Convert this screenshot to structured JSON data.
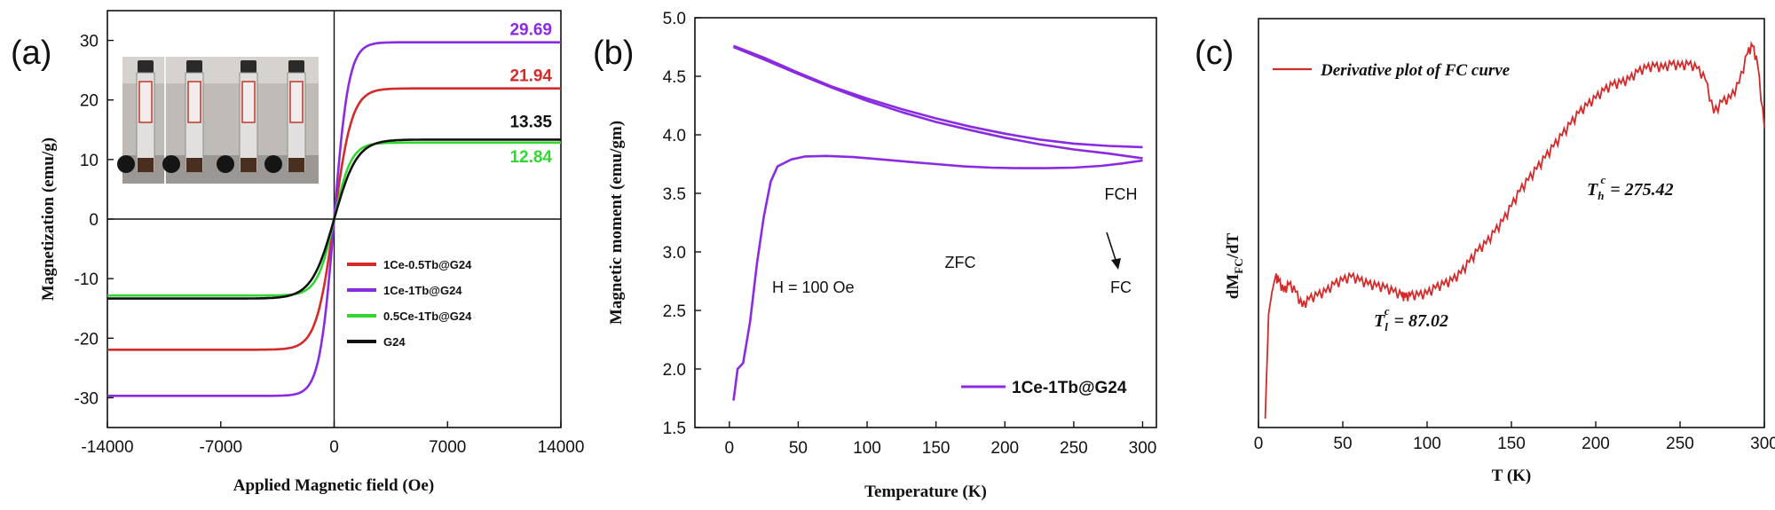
{
  "chart_data": [
    {
      "type": "line",
      "panel_label": "(a)",
      "xlabel": "Applied Magnetic field (Oe)",
      "ylabel": "Magnetization (emu/g)",
      "xlim": [
        -14000,
        14000
      ],
      "ylim": [
        -35,
        35
      ],
      "xticks": [
        "-14000",
        "-7000",
        "0",
        "7000",
        "14000"
      ],
      "yticks": [
        "-30",
        "-20",
        "-10",
        "0",
        "10",
        "20",
        "30"
      ],
      "legend_position": "lower-right",
      "series": [
        {
          "name": "1Ce-0.5Tb@G24",
          "color": "#d42a2a",
          "ms": 21.94,
          "label": "21.94",
          "k": 1100
        },
        {
          "name": "1Ce-1Tb@G24",
          "color": "#8a2be2",
          "ms": 29.69,
          "label": "29.69",
          "k": 900
        },
        {
          "name": "0.5Ce-1Tb@G24",
          "color": "#33d633",
          "ms": 12.84,
          "label": "12.84",
          "k": 1050
        },
        {
          "name": "G24",
          "color": "#111111",
          "ms": 13.35,
          "label": "13.35",
          "k": 1400
        }
      ],
      "inset": "photo of four sample vials with magnet"
    },
    {
      "type": "line",
      "panel_label": "(b)",
      "xlabel": "Temperature (K)",
      "ylabel": "Magnetic moment (emu/gm)",
      "xlim": [
        -25,
        310
      ],
      "ylim": [
        1.5,
        5.0
      ],
      "xticks": [
        "0",
        "50",
        "100",
        "150",
        "200",
        "250",
        "300"
      ],
      "yticks": [
        "1.5",
        "2.0",
        "2.5",
        "3.0",
        "3.5",
        "4.0",
        "4.5",
        "5.0"
      ],
      "legend": {
        "name": "1Ce-1Tb@G24",
        "color": "#8a2be2",
        "position": "lower-right"
      },
      "annotations": {
        "fch": "FCH",
        "zfc": "ZFC",
        "fc": "FC",
        "field": "H = 100 Oe"
      },
      "curves": {
        "zfc": [
          [
            3,
            1.73
          ],
          [
            6,
            2.0
          ],
          [
            10,
            2.05
          ],
          [
            15,
            2.4
          ],
          [
            20,
            2.9
          ],
          [
            25,
            3.3
          ],
          [
            30,
            3.6
          ],
          [
            35,
            3.73
          ],
          [
            45,
            3.79
          ],
          [
            55,
            3.815
          ],
          [
            70,
            3.82
          ],
          [
            90,
            3.81
          ],
          [
            110,
            3.79
          ],
          [
            130,
            3.77
          ],
          [
            150,
            3.75
          ],
          [
            170,
            3.73
          ],
          [
            190,
            3.72
          ],
          [
            210,
            3.715
          ],
          [
            230,
            3.715
          ],
          [
            250,
            3.72
          ],
          [
            270,
            3.735
          ],
          [
            285,
            3.755
          ],
          [
            300,
            3.78
          ]
        ],
        "fch": [
          [
            3,
            4.76
          ],
          [
            25,
            4.66
          ],
          [
            50,
            4.53
          ],
          [
            75,
            4.41
          ],
          [
            100,
            4.31
          ],
          [
            125,
            4.22
          ],
          [
            150,
            4.14
          ],
          [
            175,
            4.07
          ],
          [
            200,
            4.01
          ],
          [
            225,
            3.96
          ],
          [
            250,
            3.925
          ],
          [
            275,
            3.905
          ],
          [
            300,
            3.895
          ]
        ],
        "fc": [
          [
            300,
            3.8
          ],
          [
            275,
            3.84
          ],
          [
            250,
            3.875
          ],
          [
            225,
            3.92
          ],
          [
            200,
            3.975
          ],
          [
            175,
            4.04
          ],
          [
            150,
            4.11
          ],
          [
            125,
            4.195
          ],
          [
            100,
            4.29
          ],
          [
            75,
            4.4
          ],
          [
            50,
            4.52
          ],
          [
            25,
            4.645
          ],
          [
            3,
            4.75
          ]
        ]
      }
    },
    {
      "type": "line",
      "panel_label": "(c)",
      "xlabel": "T (K)",
      "ylabel": "dM<sub>FC</sub>/dT",
      "ylabel_main": "dM",
      "ylabel_sub": "FC",
      "ylabel_tail": "/dT",
      "xlim": [
        0,
        300
      ],
      "xticks": [
        "0",
        "50",
        "100",
        "150",
        "200",
        "250",
        "300"
      ],
      "legend": {
        "name": "Derivative plot of FC curve",
        "color": "#d42a2a",
        "position": "top-left"
      },
      "annotations": {
        "tl": {
          "main": "T",
          "sub": "l",
          "sup": "c",
          "value": " = 87.02"
        },
        "th": {
          "main": "T",
          "sub": "h",
          "sup": "c",
          "value": " = 275.42"
        }
      },
      "points": [
        [
          4,
          0.0
        ],
        [
          6,
          0.28
        ],
        [
          8,
          0.34
        ],
        [
          10,
          0.38
        ],
        [
          12,
          0.37
        ],
        [
          15,
          0.34
        ],
        [
          18,
          0.36
        ],
        [
          22,
          0.34
        ],
        [
          26,
          0.3
        ],
        [
          30,
          0.32
        ],
        [
          35,
          0.33
        ],
        [
          40,
          0.34
        ],
        [
          45,
          0.36
        ],
        [
          50,
          0.37
        ],
        [
          55,
          0.38
        ],
        [
          60,
          0.37
        ],
        [
          65,
          0.36
        ],
        [
          70,
          0.355
        ],
        [
          75,
          0.35
        ],
        [
          80,
          0.34
        ],
        [
          85,
          0.33
        ],
        [
          87,
          0.325
        ],
        [
          90,
          0.33
        ],
        [
          95,
          0.33
        ],
        [
          100,
          0.335
        ],
        [
          105,
          0.35
        ],
        [
          110,
          0.36
        ],
        [
          115,
          0.37
        ],
        [
          120,
          0.39
        ],
        [
          125,
          0.42
        ],
        [
          130,
          0.45
        ],
        [
          135,
          0.47
        ],
        [
          140,
          0.5
        ],
        [
          145,
          0.53
        ],
        [
          150,
          0.57
        ],
        [
          155,
          0.61
        ],
        [
          160,
          0.64
        ],
        [
          165,
          0.67
        ],
        [
          170,
          0.7
        ],
        [
          175,
          0.73
        ],
        [
          180,
          0.76
        ],
        [
          185,
          0.79
        ],
        [
          190,
          0.82
        ],
        [
          195,
          0.84
        ],
        [
          200,
          0.86
        ],
        [
          205,
          0.88
        ],
        [
          210,
          0.895
        ],
        [
          215,
          0.9
        ],
        [
          220,
          0.91
        ],
        [
          225,
          0.93
        ],
        [
          230,
          0.94
        ],
        [
          235,
          0.945
        ],
        [
          240,
          0.94
        ],
        [
          245,
          0.95
        ],
        [
          250,
          0.945
        ],
        [
          255,
          0.95
        ],
        [
          260,
          0.94
        ],
        [
          265,
          0.91
        ],
        [
          270,
          0.82
        ],
        [
          275,
          0.85
        ],
        [
          280,
          0.86
        ],
        [
          285,
          0.9
        ],
        [
          290,
          0.98
        ],
        [
          293,
          1.0
        ],
        [
          296,
          0.95
        ],
        [
          300,
          0.78
        ]
      ]
    }
  ]
}
